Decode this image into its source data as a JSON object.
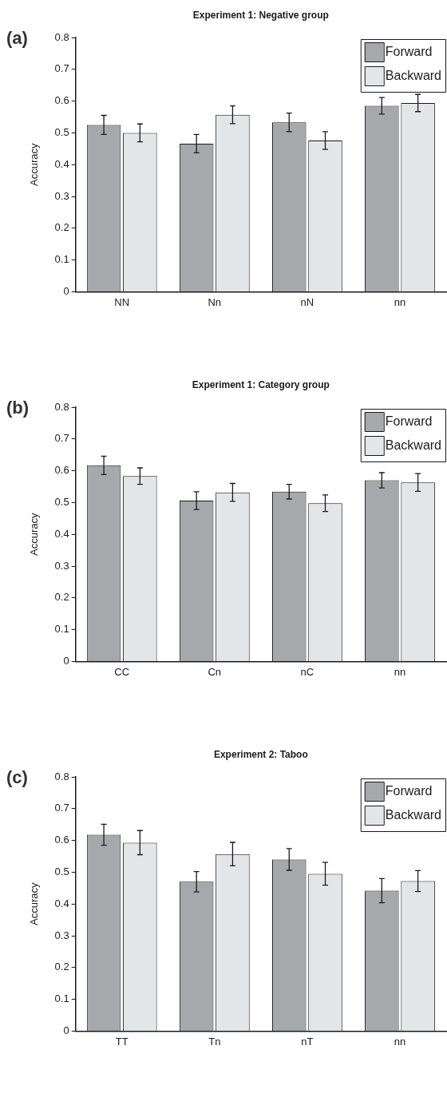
{
  "chart_data": [
    {
      "type": "bar",
      "title": "Experiment 1: Negative group",
      "ylabel": "Accuracy",
      "annotations": [
        "(a)"
      ],
      "categories": [
        "NN",
        "Nn",
        "nN",
        "nn"
      ],
      "series": [
        {
          "name": "Forward",
          "color": "#a7a8ac",
          "values": [
            0.525,
            0.466,
            0.533,
            0.585
          ],
          "errors": [
            0.03,
            0.029,
            0.029,
            0.026
          ]
        },
        {
          "name": "Backward",
          "color": "#e4e5e7",
          "values": [
            0.5,
            0.557,
            0.476,
            0.594
          ],
          "errors": [
            0.028,
            0.028,
            0.028,
            0.027
          ]
        }
      ],
      "ylim": [
        0,
        0.8
      ],
      "yticks": [
        0,
        0.1,
        0.2,
        0.3,
        0.4,
        0.5,
        0.6,
        0.7,
        0.8
      ],
      "legend": "top right"
    },
    {
      "type": "bar",
      "title": "Experiment 1: Category group",
      "ylabel": "Accuracy",
      "annotations": [
        "(b)"
      ],
      "categories": [
        "CC",
        "Cn",
        "nC",
        "nn"
      ],
      "series": [
        {
          "name": "Forward",
          "color": "#a7a8ac",
          "values": [
            0.617,
            0.506,
            0.534,
            0.57
          ],
          "errors": [
            0.029,
            0.028,
            0.023,
            0.024
          ]
        },
        {
          "name": "Backward",
          "color": "#e4e5e7",
          "values": [
            0.583,
            0.532,
            0.498,
            0.563
          ],
          "errors": [
            0.026,
            0.028,
            0.026,
            0.028
          ]
        }
      ],
      "ylim": [
        0,
        0.8
      ],
      "yticks": [
        0,
        0.1,
        0.2,
        0.3,
        0.4,
        0.5,
        0.6,
        0.7,
        0.8
      ],
      "legend": "top right"
    },
    {
      "type": "bar",
      "title": "Experiment 2: Taboo",
      "ylabel": "Accuracy",
      "annotations": [
        "(c)"
      ],
      "categories": [
        "TT",
        "Tn",
        "nT",
        "nn"
      ],
      "series": [
        {
          "name": "Forward",
          "color": "#a7a8ac",
          "values": [
            0.618,
            0.47,
            0.54,
            0.442
          ],
          "errors": [
            0.033,
            0.032,
            0.034,
            0.038
          ]
        },
        {
          "name": "Backward",
          "color": "#e4e5e7",
          "values": [
            0.593,
            0.557,
            0.495,
            0.472
          ],
          "errors": [
            0.038,
            0.037,
            0.036,
            0.033
          ]
        }
      ],
      "ylim": [
        0,
        0.8
      ],
      "yticks": [
        0,
        0.1,
        0.2,
        0.3,
        0.4,
        0.5,
        0.6,
        0.7,
        0.8
      ],
      "legend": "top right"
    }
  ]
}
